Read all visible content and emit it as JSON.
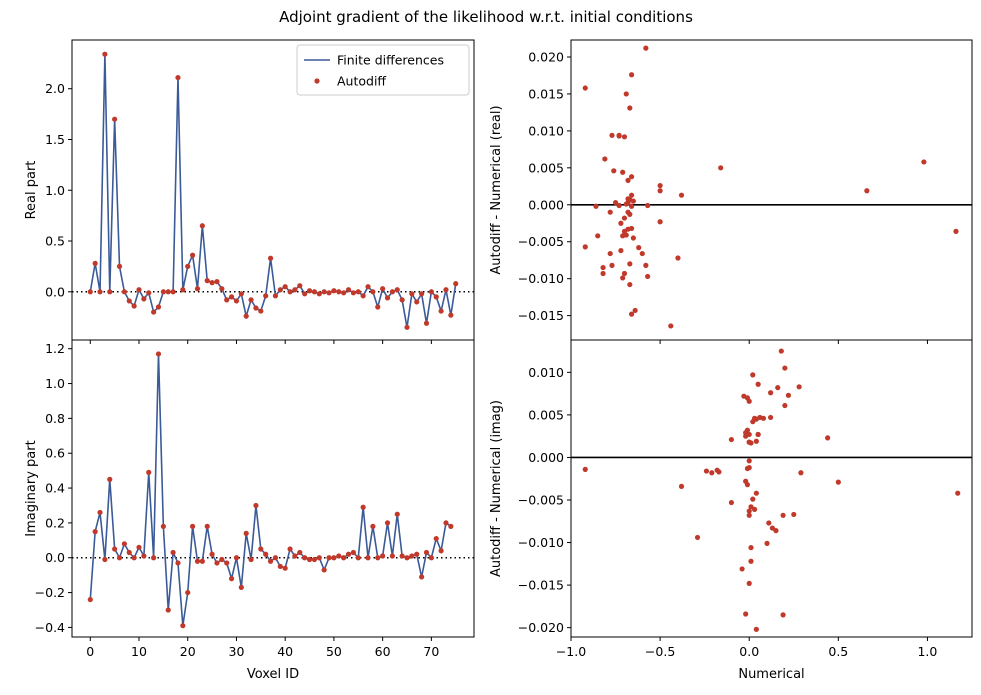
{
  "figure": {
    "suptitle": "Adjoint gradient of the likelihood w.r.t. initial conditions"
  },
  "colors": {
    "line": "#3b5a98",
    "dot": "#c0392b",
    "axis": "#000000"
  },
  "chart_data": [
    {
      "id": "real-vs-voxel",
      "type": "line",
      "xlabel": "",
      "ylabel": "Real part",
      "xlim": [
        -3.75,
        78.75
      ],
      "ylim": [
        -0.475,
        2.48
      ],
      "yticks": [
        0.0,
        0.5,
        1.0,
        1.5,
        2.0
      ],
      "ytick_labels": [
        "0.0",
        "0.5",
        "1.0",
        "1.5",
        "2.0"
      ],
      "xticks": [
        0,
        10,
        20,
        30,
        40,
        50,
        60,
        70
      ],
      "xtick_labels": [
        "",
        "",
        "",
        "",
        "",
        "",
        "",
        ""
      ],
      "hline": 0,
      "legend": {
        "position": "top-right",
        "entries": [
          "Finite differences",
          "Autodiff"
        ]
      },
      "x_start": 0,
      "series": [
        {
          "name": "Finite differences",
          "style": "line",
          "values": [
            0.0,
            0.28,
            0.0,
            2.34,
            0.0,
            1.7,
            0.25,
            0.0,
            -0.09,
            -0.14,
            0.02,
            -0.07,
            -0.01,
            -0.2,
            -0.15,
            0.0,
            0.0,
            0.0,
            2.11,
            0.02,
            0.25,
            0.36,
            0.03,
            0.65,
            0.11,
            0.09,
            0.1,
            0.03,
            -0.08,
            -0.05,
            -0.09,
            -0.02,
            -0.24,
            -0.08,
            -0.16,
            -0.19,
            -0.04,
            0.33,
            -0.04,
            0.02,
            0.05,
            0.0,
            0.02,
            0.06,
            -0.02,
            0.01,
            0.0,
            -0.02,
            0.0,
            -0.01,
            0.01,
            0.0,
            -0.01,
            0.02,
            -0.01,
            0.0,
            -0.04,
            0.05,
            0.0,
            -0.15,
            0.03,
            -0.06,
            0.0,
            0.02,
            -0.08,
            -0.35,
            -0.02,
            -0.1,
            -0.02,
            -0.31,
            0.0,
            -0.05,
            -0.19,
            0.02,
            -0.23,
            0.08
          ]
        },
        {
          "name": "Autodiff",
          "style": "scatter",
          "values": [
            0.0,
            0.28,
            0.0,
            2.34,
            0.0,
            1.7,
            0.25,
            0.0,
            -0.09,
            -0.14,
            0.02,
            -0.07,
            -0.01,
            -0.2,
            -0.15,
            0.0,
            0.0,
            0.0,
            2.11,
            0.02,
            0.25,
            0.36,
            0.03,
            0.65,
            0.11,
            0.09,
            0.1,
            0.03,
            -0.08,
            -0.05,
            -0.09,
            -0.02,
            -0.24,
            -0.08,
            -0.16,
            -0.19,
            -0.04,
            0.33,
            -0.04,
            0.02,
            0.05,
            0.0,
            0.02,
            0.06,
            -0.02,
            0.01,
            0.0,
            -0.02,
            0.0,
            -0.01,
            0.01,
            0.0,
            -0.01,
            0.02,
            -0.01,
            0.0,
            -0.04,
            0.05,
            0.0,
            -0.15,
            0.03,
            -0.06,
            0.0,
            0.02,
            -0.08,
            -0.35,
            -0.02,
            -0.1,
            -0.02,
            -0.31,
            0.0,
            -0.05,
            -0.19,
            0.02,
            -0.23,
            0.08
          ]
        }
      ]
    },
    {
      "id": "imag-vs-voxel",
      "type": "line",
      "xlabel": "Voxel ID",
      "ylabel": "Imaginary part",
      "xlim": [
        -3.75,
        78.75
      ],
      "ylim": [
        -0.455,
        1.25
      ],
      "yticks": [
        -0.4,
        -0.2,
        0.0,
        0.2,
        0.4,
        0.6,
        0.8,
        1.0,
        1.2
      ],
      "ytick_labels": [
        "−0.4",
        "−0.2",
        "0.0",
        "0.2",
        "0.4",
        "0.6",
        "0.8",
        "1.0",
        "1.2"
      ],
      "xticks": [
        0,
        10,
        20,
        30,
        40,
        50,
        60,
        70
      ],
      "xtick_labels": [
        "0",
        "10",
        "20",
        "30",
        "40",
        "50",
        "60",
        "70"
      ],
      "hline": 0,
      "x_start": 0,
      "series": [
        {
          "name": "Finite differences",
          "style": "line",
          "values": [
            -0.24,
            0.15,
            0.26,
            -0.01,
            0.45,
            0.05,
            0.0,
            0.08,
            0.03,
            0.0,
            0.06,
            0.01,
            0.49,
            0.0,
            1.17,
            0.18,
            -0.3,
            0.03,
            -0.03,
            -0.39,
            -0.2,
            0.18,
            -0.02,
            -0.02,
            0.18,
            0.02,
            -0.03,
            -0.01,
            -0.03,
            -0.12,
            0.0,
            -0.17,
            0.14,
            -0.01,
            0.3,
            0.05,
            0.02,
            -0.02,
            0.0,
            -0.05,
            -0.06,
            0.05,
            0.01,
            0.03,
            0.0,
            -0.01,
            -0.01,
            0.0,
            -0.07,
            0.0,
            0.0,
            0.01,
            0.0,
            0.02,
            0.03,
            0.0,
            0.29,
            0.0,
            0.18,
            0.0,
            0.01,
            0.2,
            0.01,
            0.25,
            0.01,
            0.0,
            0.01,
            0.02,
            -0.11,
            0.03,
            0.0,
            0.11,
            0.04,
            0.2,
            0.18
          ]
        },
        {
          "name": "Autodiff",
          "style": "scatter",
          "values": [
            -0.24,
            0.15,
            0.26,
            -0.01,
            0.45,
            0.05,
            0.0,
            0.08,
            0.03,
            0.0,
            0.06,
            0.01,
            0.49,
            0.0,
            1.17,
            0.18,
            -0.3,
            0.03,
            -0.03,
            -0.39,
            -0.2,
            0.18,
            -0.02,
            -0.02,
            0.18,
            0.02,
            -0.03,
            -0.01,
            -0.03,
            -0.12,
            0.0,
            -0.17,
            0.14,
            -0.01,
            0.3,
            0.05,
            0.02,
            -0.02,
            0.0,
            -0.05,
            -0.06,
            0.05,
            0.01,
            0.03,
            0.0,
            -0.01,
            -0.01,
            0.0,
            -0.07,
            0.0,
            0.0,
            0.01,
            0.0,
            0.02,
            0.03,
            0.0,
            0.29,
            0.0,
            0.18,
            0.0,
            0.01,
            0.2,
            0.01,
            0.25,
            0.01,
            0.0,
            0.01,
            0.02,
            -0.11,
            0.03,
            0.0,
            0.11,
            0.04,
            0.2,
            0.18
          ]
        }
      ]
    },
    {
      "id": "real-residual",
      "type": "scatter",
      "xlabel": "",
      "ylabel": "Autodiff - Numerical (real)",
      "xlim": [
        -1.0,
        1.25
      ],
      "ylim": [
        -0.0183,
        0.0223
      ],
      "yticks": [
        -0.015,
        -0.01,
        -0.005,
        0.0,
        0.005,
        0.01,
        0.015,
        0.02
      ],
      "ytick_labels": [
        "−0.015",
        "−0.010",
        "−0.005",
        "0.000",
        "0.005",
        "0.010",
        "0.015",
        "0.020"
      ],
      "xticks": [
        -1.0,
        -0.5,
        0.0,
        0.5,
        1.0
      ],
      "xtick_labels": [
        "",
        "",
        "",
        "",
        ""
      ],
      "hline": 0,
      "series": [
        {
          "name": "",
          "style": "scatter",
          "x": [
            -0.58,
            -0.92,
            -0.66,
            -0.67,
            -0.69,
            -0.73,
            -0.77,
            -0.73,
            -0.7,
            -0.81,
            -0.66,
            -0.68,
            -0.71,
            -0.76,
            -0.66,
            -0.68,
            -0.5,
            -0.65,
            -0.16,
            -0.5,
            -0.38,
            -0.67,
            -0.68,
            -0.75,
            -0.69,
            -0.73,
            -0.66,
            -0.57,
            -0.68,
            -0.67,
            -0.86,
            -0.7,
            -0.5,
            -0.78,
            -0.72,
            -0.66,
            -0.68,
            -0.7,
            -0.71,
            -0.69,
            -0.92,
            -0.85,
            -0.78,
            -0.65,
            -0.62,
            -0.6,
            -0.4,
            -0.72,
            -0.82,
            -0.67,
            -0.77,
            -0.58,
            -0.7,
            -0.57,
            -0.82,
            -0.71,
            -0.66,
            -0.64,
            -0.67,
            -0.44,
            0.98,
            0.66,
            1.16
          ],
          "y": [
            0.0212,
            0.0158,
            0.0176,
            0.0131,
            0.015,
            0.0094,
            0.0094,
            0.0093,
            0.0092,
            0.0062,
            0.0038,
            0.0033,
            0.0044,
            0.0046,
            0.0013,
            0.0008,
            0.0026,
            0.0005,
            0.005,
            0.0019,
            0.0013,
            0.0007,
            0.0003,
            0.0003,
            0.0001,
            -0.0001,
            -0.0002,
            -0.0001,
            -0.001,
            -0.0013,
            -0.0002,
            -0.0018,
            -0.0023,
            -0.001,
            -0.0025,
            -0.0032,
            -0.0033,
            -0.0036,
            -0.0042,
            -0.0041,
            -0.0057,
            -0.0042,
            -0.0066,
            -0.0045,
            -0.0058,
            -0.0066,
            -0.0072,
            -0.0062,
            -0.0085,
            -0.008,
            -0.0082,
            -0.0082,
            -0.0093,
            -0.0097,
            -0.0093,
            -0.0099,
            -0.0148,
            -0.0143,
            -0.0108,
            -0.0164,
            0.0058,
            0.0019,
            -0.0036
          ]
        }
      ]
    },
    {
      "id": "imag-residual",
      "type": "scatter",
      "xlabel": "Numerical",
      "ylabel": "Autodiff - Numerical (imag)",
      "xlim": [
        -1.0,
        1.25
      ],
      "ylim": [
        -0.0211,
        0.0138
      ],
      "yticks": [
        -0.02,
        -0.015,
        -0.01,
        -0.005,
        0.0,
        0.005,
        0.01
      ],
      "ytick_labels": [
        "−0.020",
        "−0.015",
        "−0.010",
        "−0.005",
        "0.000",
        "0.005",
        "0.010"
      ],
      "xticks": [
        -1.0,
        -0.5,
        0.0,
        0.5,
        1.0
      ],
      "xtick_labels": [
        "−1.0",
        "−0.5",
        "0.0",
        "0.5",
        "1.0"
      ],
      "hline": 0,
      "series": [
        {
          "name": "",
          "style": "scatter",
          "x": [
            0.18,
            0.2,
            0.02,
            0.05,
            0.28,
            0.16,
            0.22,
            0.2,
            0.12,
            -0.03,
            -0.01,
            0.0,
            0.03,
            0.06,
            0.08,
            0.12,
            0.02,
            -0.02,
            0.05,
            0.44,
            -0.1,
            -0.01,
            0.0,
            -0.02,
            0.0,
            0.01,
            0.0,
            0.04,
            0.05,
            0.04,
            -0.24,
            -0.21,
            -0.18,
            -0.17,
            -0.01,
            -0.02,
            0.0,
            -0.01,
            0.02,
            0.04,
            0.01,
            0.03,
            0.0,
            0.0,
            -0.1,
            0.1,
            0.13,
            0.19,
            0.15,
            0.25,
            -0.29,
            -0.38,
            -0.92,
            0.29,
            0.5,
            1.17,
            0.11,
            0.01,
            0.01,
            0.0,
            -0.02,
            -0.04,
            0.19,
            0.04,
            0.0
          ],
          "y": [
            0.0125,
            0.0105,
            0.0097,
            0.0086,
            0.0083,
            0.0082,
            0.0073,
            0.0061,
            0.0076,
            0.0072,
            0.007,
            0.0066,
            0.0046,
            0.0047,
            0.0046,
            0.0047,
            0.0042,
            0.0025,
            0.0027,
            0.0023,
            0.0021,
            0.0032,
            0.0018,
            0.0029,
            0.0027,
            0.0017,
            0.0018,
            0.0019,
            0.0027,
            0.0045,
            -0.0016,
            -0.0018,
            -0.0015,
            -0.0017,
            -0.0013,
            -0.0028,
            -0.0004,
            -0.0032,
            -0.0049,
            -0.0042,
            -0.0058,
            -0.0061,
            -0.0063,
            -0.0068,
            -0.0053,
            -0.0101,
            -0.0083,
            -0.0068,
            -0.0086,
            -0.0067,
            -0.0094,
            -0.0034,
            -0.0014,
            -0.0018,
            -0.0029,
            -0.0042,
            -0.0077,
            -0.0106,
            -0.0122,
            -0.0148,
            -0.0184,
            -0.0131,
            -0.0185,
            -0.0202,
            -0.0012
          ]
        }
      ]
    }
  ]
}
